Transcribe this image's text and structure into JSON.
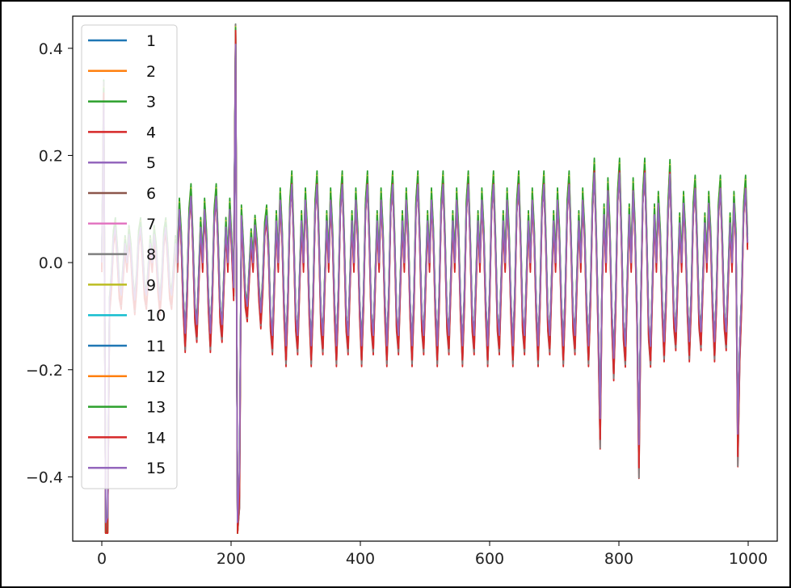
{
  "chart_data": {
    "type": "line",
    "title": "",
    "xlabel": "",
    "ylabel": "",
    "xlim": [
      -45,
      1045
    ],
    "ylim": [
      -0.52,
      0.46
    ],
    "x_ticks": [
      0,
      200,
      400,
      600,
      800,
      1000
    ],
    "x_tick_labels": [
      "0",
      "200",
      "400",
      "600",
      "800",
      "1000"
    ],
    "y_ticks": [
      -0.4,
      -0.2,
      0.0,
      0.2,
      0.4
    ],
    "y_tick_labels": [
      "−0.4",
      "−0.2",
      "0.0",
      "0.2",
      "0.4"
    ],
    "grid": false,
    "legend_placement": "upper-left",
    "x": {
      "start": 0,
      "end": 999,
      "step": 3
    },
    "base_signal": {
      "pattern_period": 13,
      "pattern": [
        0.0,
        0.12,
        0.05,
        -0.08,
        -0.16,
        -0.06,
        0.1,
        0.15,
        0.04,
        -0.1,
        -0.14,
        -0.03,
        0.08
      ],
      "segments": [
        {
          "x_from": 0,
          "x_to": 120,
          "amplitude": 0.45
        },
        {
          "x_from": 120,
          "x_to": 200,
          "amplitude": 0.85
        },
        {
          "x_from": 200,
          "x_to": 260,
          "amplitude": 0.6
        },
        {
          "x_from": 260,
          "x_to": 760,
          "amplitude": 1.0
        },
        {
          "x_from": 760,
          "x_to": 860,
          "amplitude": 1.15
        },
        {
          "x_from": 860,
          "x_to": 999,
          "amplitude": 0.95
        }
      ],
      "spikes": [
        {
          "x": 3,
          "y": 0.31
        },
        {
          "x": 6,
          "y": -0.5
        },
        {
          "x": 9,
          "y": -0.49
        },
        {
          "x": 207,
          "y": 0.42
        },
        {
          "x": 210,
          "y": -0.5
        },
        {
          "x": 213,
          "y": -0.4
        },
        {
          "x": 770,
          "y": -0.3
        },
        {
          "x": 830,
          "y": -0.35
        },
        {
          "x": 878,
          "y": 0.17
        },
        {
          "x": 985,
          "y": -0.33
        }
      ]
    },
    "series": [
      {
        "name": "1",
        "color": "#1f77b4",
        "offset": 0.004,
        "scale": 1.0
      },
      {
        "name": "2",
        "color": "#ff7f0e",
        "offset": -0.006,
        "scale": 1.04
      },
      {
        "name": "3",
        "color": "#2ca02c",
        "offset": 0.012,
        "scale": 1.06
      },
      {
        "name": "4",
        "color": "#d62728",
        "offset": -0.018,
        "scale": 1.1
      },
      {
        "name": "5",
        "color": "#9467bd",
        "offset": 0.0,
        "scale": 0.98
      },
      {
        "name": "6",
        "color": "#8c564b",
        "offset": -0.002,
        "scale": 1.0
      },
      {
        "name": "7",
        "color": "#e377c2",
        "offset": 0.002,
        "scale": 1.02
      },
      {
        "name": "8",
        "color": "#7f7f7f",
        "offset": -0.01,
        "scale": 1.12
      },
      {
        "name": "9",
        "color": "#bcbd22",
        "offset": 0.008,
        "scale": 1.03
      },
      {
        "name": "10",
        "color": "#17becf",
        "offset": 0.0,
        "scale": 1.0
      },
      {
        "name": "11",
        "color": "#1f77b4",
        "offset": 0.003,
        "scale": 1.01
      },
      {
        "name": "12",
        "color": "#ff7f0e",
        "offset": -0.004,
        "scale": 1.02
      },
      {
        "name": "13",
        "color": "#2ca02c",
        "offset": 0.006,
        "scale": 1.03
      },
      {
        "name": "14",
        "color": "#d62728",
        "offset": -0.012,
        "scale": 1.06
      },
      {
        "name": "15",
        "color": "#9467bd",
        "offset": 0.0,
        "scale": 0.97
      }
    ]
  }
}
